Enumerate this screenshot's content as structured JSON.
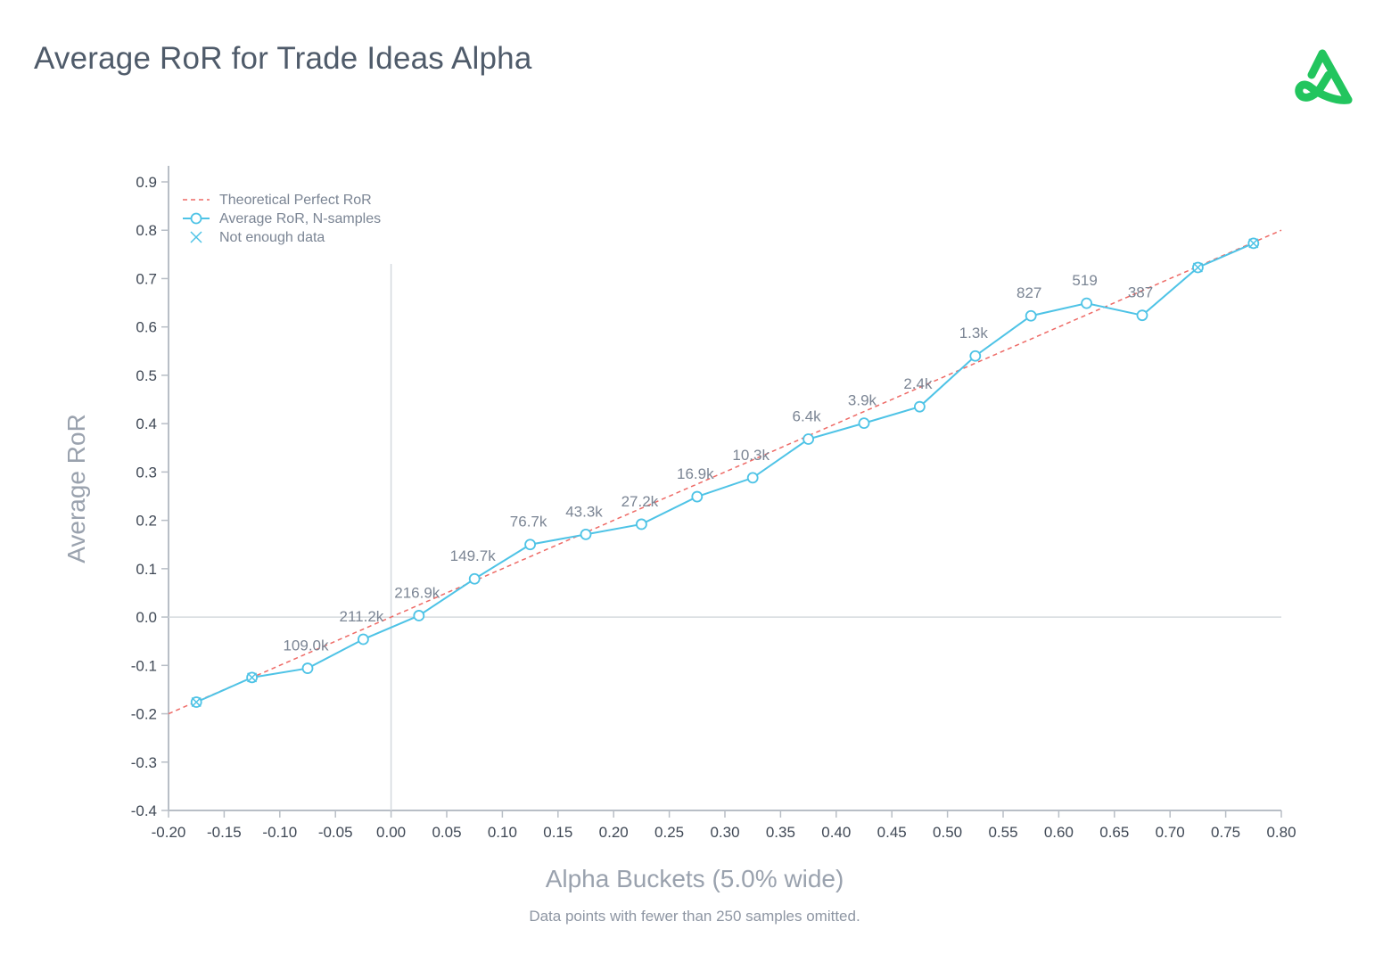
{
  "title": "Average RoR for Trade Ideas Alpha",
  "logo_icon": "trade-ideas-logo-icon",
  "footnote": "Data points with fewer than 250 samples omitted.",
  "chart_data": {
    "type": "line",
    "xlabel": "Alpha Buckets (5.0% wide)",
    "ylabel": "Average RoR",
    "xlim": [
      -0.2,
      0.8
    ],
    "ylim": [
      -0.4,
      0.9
    ],
    "x_ticks": [
      "-0.20",
      "-0.15",
      "-0.10",
      "-0.05",
      "0.00",
      "0.05",
      "0.10",
      "0.15",
      "0.20",
      "0.25",
      "0.30",
      "0.35",
      "0.40",
      "0.45",
      "0.50",
      "0.55",
      "0.60",
      "0.65",
      "0.70",
      "0.75",
      "0.80"
    ],
    "y_ticks": [
      "0.9",
      "0.8",
      "0.7",
      "0.6",
      "0.5",
      "0.4",
      "0.3",
      "0.2",
      "0.1",
      "0.0",
      "-0.1",
      "-0.2",
      "-0.3",
      "-0.4"
    ],
    "legend": {
      "placement": "top-left",
      "entries": [
        "Theoretical Perfect RoR",
        "Average RoR, N-samples",
        "Not enough data"
      ]
    },
    "theoretical_line": {
      "name": "Theoretical Perfect RoR",
      "x": [
        -0.2,
        0.8
      ],
      "y": [
        -0.2,
        0.8
      ],
      "color": "#ee6a66",
      "style": "dashed"
    },
    "series": [
      {
        "name": "Average RoR, N-samples",
        "color": "#4ec3e6",
        "points": [
          {
            "x": -0.175,
            "y": -0.176,
            "label": "",
            "enough_data": false
          },
          {
            "x": -0.125,
            "y": -0.125,
            "label": "",
            "enough_data": false
          },
          {
            "x": -0.075,
            "y": -0.106,
            "label": "109.0k",
            "enough_data": true
          },
          {
            "x": -0.025,
            "y": -0.046,
            "label": "211.2k",
            "enough_data": true
          },
          {
            "x": 0.025,
            "y": 0.003,
            "label": "216.9k",
            "enough_data": true
          },
          {
            "x": 0.075,
            "y": 0.079,
            "label": "149.7k",
            "enough_data": true
          },
          {
            "x": 0.125,
            "y": 0.15,
            "label": "76.7k",
            "enough_data": true
          },
          {
            "x": 0.175,
            "y": 0.171,
            "label": "43.3k",
            "enough_data": true
          },
          {
            "x": 0.225,
            "y": 0.192,
            "label": "27.2k",
            "enough_data": true
          },
          {
            "x": 0.275,
            "y": 0.249,
            "label": "16.9k",
            "enough_data": true
          },
          {
            "x": 0.325,
            "y": 0.288,
            "label": "10.3k",
            "enough_data": true
          },
          {
            "x": 0.375,
            "y": 0.368,
            "label": "6.4k",
            "enough_data": true
          },
          {
            "x": 0.425,
            "y": 0.401,
            "label": "3.9k",
            "enough_data": true
          },
          {
            "x": 0.475,
            "y": 0.435,
            "label": "2.4k",
            "enough_data": true
          },
          {
            "x": 0.525,
            "y": 0.54,
            "label": "1.3k",
            "enough_data": true
          },
          {
            "x": 0.575,
            "y": 0.623,
            "label": "827",
            "enough_data": true
          },
          {
            "x": 0.625,
            "y": 0.649,
            "label": "519",
            "enough_data": true
          },
          {
            "x": 0.675,
            "y": 0.624,
            "label": "387",
            "enough_data": true
          },
          {
            "x": 0.725,
            "y": 0.723,
            "label": "",
            "enough_data": false
          },
          {
            "x": 0.775,
            "y": 0.773,
            "label": "",
            "enough_data": false
          }
        ]
      }
    ],
    "grid": false,
    "reference_lines": {
      "x0": true,
      "y0": true
    }
  }
}
